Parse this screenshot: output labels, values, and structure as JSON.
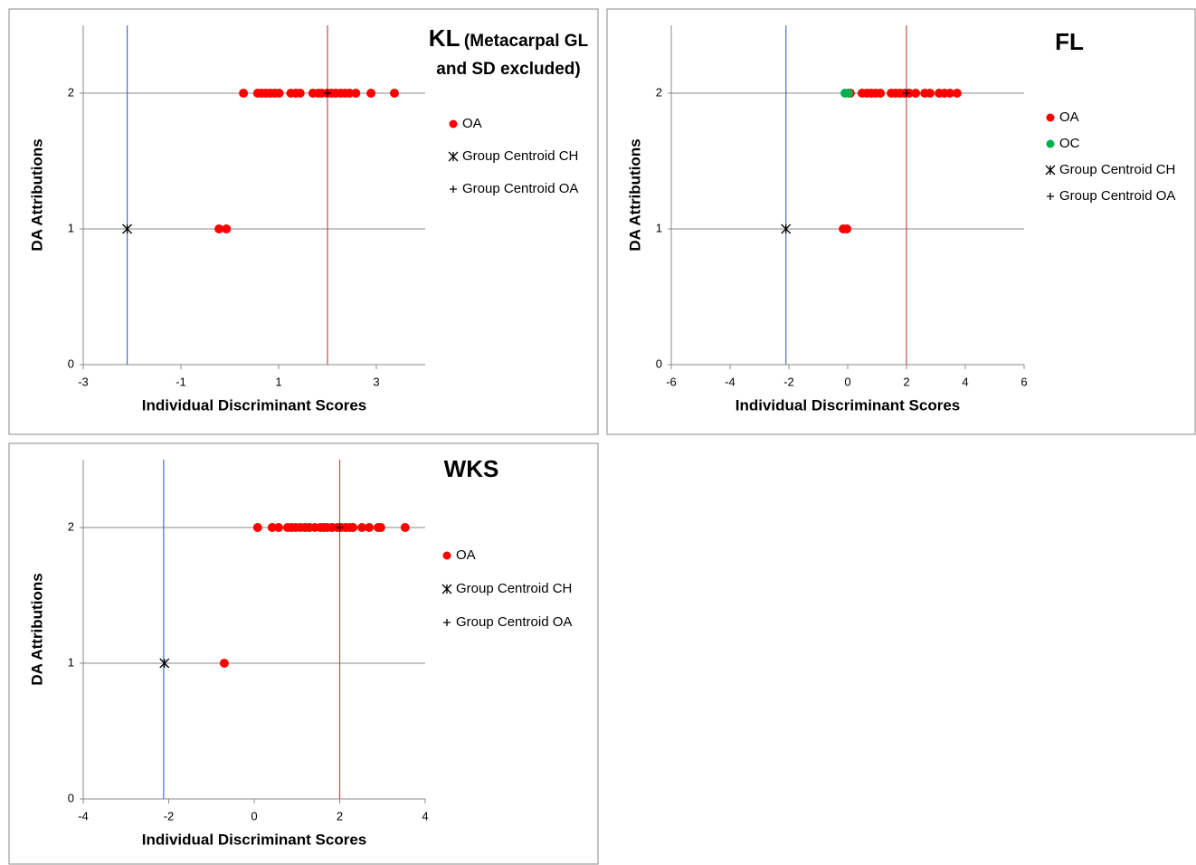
{
  "chart_data": [
    {
      "type": "scatter",
      "title": "KL",
      "subtitle": "(Metacarpal GL and SD excluded)",
      "x_label": "Individual Discriminant Scores",
      "y_label": "DA Attributions",
      "xlim": [
        -3,
        4
      ],
      "ylim": [
        0,
        2.5
      ],
      "xticks": [
        -3,
        -1,
        1,
        3
      ],
      "yticks": [
        0,
        1,
        2
      ],
      "grid": true,
      "series": [
        {
          "name": "OA",
          "color": "#ff0000",
          "marker": "circle",
          "x": [
            0.28,
            0.57,
            0.65,
            0.74,
            0.83,
            0.92,
            1.01,
            1.25,
            1.35,
            1.44,
            1.7,
            1.81,
            1.88,
            1.99,
            2.08,
            2.17,
            2.27,
            2.36,
            2.45,
            2.58,
            2.89,
            3.37,
            -0.22,
            -0.07
          ],
          "values": [
            2,
            2,
            2,
            2,
            2,
            2,
            2,
            2,
            2,
            2,
            2,
            2,
            2,
            2,
            2,
            2,
            2,
            2,
            2,
            2,
            2,
            2,
            1,
            1
          ]
        },
        {
          "name": "Group Centroid CH",
          "color": "#000000",
          "marker": "asterisk",
          "x": [
            -2.1
          ],
          "values": [
            1
          ]
        },
        {
          "name": "Group Centroid OA",
          "color": "#000000",
          "marker": "plus",
          "x": [
            2
          ],
          "values": [
            2
          ]
        }
      ],
      "vlines": [
        {
          "x": -2.1,
          "color": "#4472c4"
        },
        {
          "x": 2,
          "color": "#c0504d"
        }
      ]
    },
    {
      "type": "scatter",
      "title": "FL",
      "x_label": "Individual Discriminant Scores",
      "y_label": "DA Attributions",
      "xlim": [
        -6,
        6
      ],
      "ylim": [
        0,
        2.5
      ],
      "xticks": [
        -6,
        -4,
        -2,
        0,
        2,
        4,
        6
      ],
      "yticks": [
        0,
        1,
        2
      ],
      "grid": true,
      "series": [
        {
          "name": "OA",
          "color": "#ff0000",
          "marker": "circle",
          "x": [
            0.09,
            0.49,
            0.65,
            0.8,
            0.95,
            1.11,
            1.48,
            1.63,
            1.78,
            1.94,
            2.09,
            2.31,
            2.62,
            2.8,
            3.11,
            3.29,
            3.48,
            3.72,
            -0.15,
            -0.03
          ],
          "values": [
            2,
            2,
            2,
            2,
            2,
            2,
            2,
            2,
            2,
            2,
            2,
            2,
            2,
            2,
            2,
            2,
            2,
            2,
            1,
            1
          ]
        },
        {
          "name": "OC",
          "color": "#00b050",
          "marker": "circle",
          "x": [
            -0.09,
            0.03
          ],
          "values": [
            2,
            2
          ]
        },
        {
          "name": "Group Centroid CH",
          "color": "#000000",
          "marker": "asterisk",
          "x": [
            -2.1
          ],
          "values": [
            1
          ]
        },
        {
          "name": "Group Centroid OA",
          "color": "#000000",
          "marker": "plus",
          "x": [
            2
          ],
          "values": [
            2
          ]
        }
      ],
      "vlines": [
        {
          "x": -2.1,
          "color": "#4472c4"
        },
        {
          "x": 2,
          "color": "#c0504d"
        }
      ]
    },
    {
      "type": "scatter",
      "title": "WKS",
      "x_label": "Individual Discriminant Scores",
      "y_label": "DA Attributions",
      "xlim": [
        -4,
        4
      ],
      "ylim": [
        0,
        2.5
      ],
      "xticks": [
        -4,
        -2,
        0,
        2,
        4
      ],
      "yticks": [
        0,
        1,
        2
      ],
      "grid": true,
      "series": [
        {
          "name": "OA",
          "color": "#ff0000",
          "marker": "circle",
          "x": [
            0.08,
            0.42,
            0.57,
            0.78,
            0.87,
            0.97,
            1.08,
            1.19,
            1.29,
            1.42,
            1.55,
            1.63,
            1.71,
            1.82,
            1.95,
            2.03,
            2.14,
            2.24,
            2.31,
            2.52,
            2.69,
            2.9,
            2.96,
            3.53,
            -0.7
          ],
          "values": [
            2,
            2,
            2,
            2,
            2,
            2,
            2,
            2,
            2,
            2,
            2,
            2,
            2,
            2,
            2,
            2,
            2,
            2,
            2,
            2,
            2,
            2,
            2,
            2,
            1
          ]
        },
        {
          "name": "Group Centroid CH",
          "color": "#000000",
          "marker": "asterisk",
          "x": [
            -2.1
          ],
          "values": [
            1
          ]
        },
        {
          "name": "Group Centroid OA",
          "color": "#000000",
          "marker": "plus",
          "x": [
            2
          ],
          "values": [
            2
          ]
        }
      ],
      "vlines": [
        {
          "x": -2.12,
          "color": "#4472c4"
        },
        {
          "x": 2,
          "color": "#c0504d"
        }
      ]
    }
  ]
}
